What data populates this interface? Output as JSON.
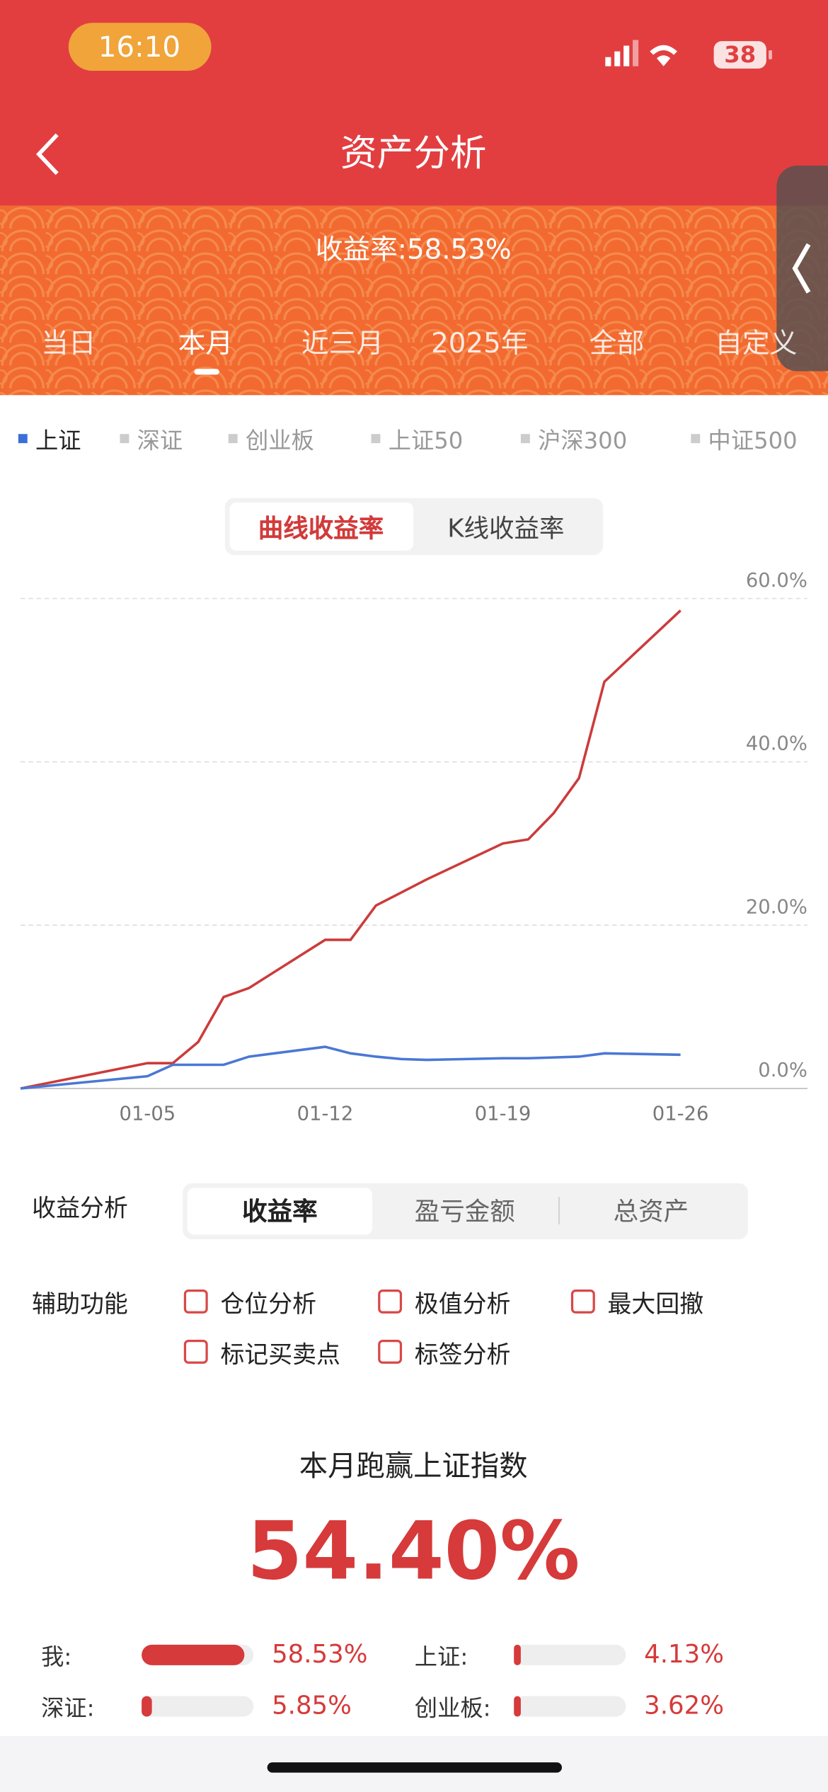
{
  "status_bar": {
    "time": "16:10",
    "battery": "38"
  },
  "nav": {
    "title": "资产分析"
  },
  "header": {
    "yield": "收益率:58.53%"
  },
  "period_tabs": [
    "当日",
    "本月",
    "近三月",
    "2025年",
    "全部",
    "自定义"
  ],
  "index_tabs": [
    "上证",
    "深证",
    "创业板",
    "上证50",
    "沪深300",
    "中证500"
  ],
  "chart_modes": [
    "曲线收益率",
    "K线收益率"
  ],
  "chart_data": {
    "type": "line",
    "x": [
      0,
      5,
      6,
      7,
      8,
      9,
      12,
      13,
      14,
      15,
      16,
      19,
      20,
      21,
      22,
      23,
      26
    ],
    "series": [
      {
        "color": "#cc3b3b",
        "values": [
          0,
          3.1,
          3.1,
          5.7,
          11.2,
          12.3,
          18.2,
          18.2,
          22.4,
          24.0,
          25.6,
          30.0,
          30.5,
          33.7,
          38.0,
          49.8,
          58.53
        ]
      },
      {
        "color": "#4a78d4",
        "values": [
          0,
          1.5,
          2.9,
          2.9,
          2.9,
          3.9,
          5.1,
          4.3,
          3.9,
          3.6,
          3.5,
          3.7,
          3.7,
          3.8,
          3.9,
          4.3,
          4.13
        ]
      }
    ],
    "xlim": [
      0,
      31
    ],
    "xticks": [
      {
        "value": 5,
        "label": "01-05"
      },
      {
        "value": 12,
        "label": "01-12"
      },
      {
        "value": 19,
        "label": "01-19"
      },
      {
        "value": 26,
        "label": "01-26"
      }
    ],
    "ylim": [
      0,
      60
    ],
    "yticks": [
      {
        "value": 0,
        "label": "0.0%"
      },
      {
        "value": 20,
        "label": "20.0%"
      },
      {
        "value": 40,
        "label": "40.0%"
      },
      {
        "value": 60,
        "label": "60.0%"
      }
    ],
    "grid": true
  },
  "analysis": {
    "label": "收益分析",
    "tabs": [
      "收益率",
      "盈亏金额",
      "总资产"
    ]
  },
  "aux": {
    "label": "辅助功能",
    "options": [
      "仓位分析",
      "极值分析",
      "最大回撤",
      "标记买卖点",
      "标签分析"
    ]
  },
  "summary": {
    "title": "本月跑赢上证指数",
    "value": "54.40%"
  },
  "comparison": [
    {
      "label": "我:",
      "value": 58.53,
      "value_label": "58.53%"
    },
    {
      "label": "上证:",
      "value": 4.13,
      "value_label": "4.13%"
    },
    {
      "label": "深证:",
      "value": 5.85,
      "value_label": "5.85%"
    },
    {
      "label": "创业板:",
      "value": 3.62,
      "value_label": "3.62%"
    }
  ]
}
